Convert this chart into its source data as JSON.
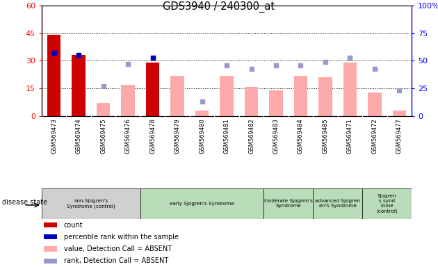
{
  "title": "GDS3940 / 240300_at",
  "samples": [
    "GSM569473",
    "GSM569474",
    "GSM569475",
    "GSM569476",
    "GSM569478",
    "GSM569479",
    "GSM569480",
    "GSM569481",
    "GSM569482",
    "GSM569483",
    "GSM569484",
    "GSM569485",
    "GSM569471",
    "GSM569472",
    "GSM569477"
  ],
  "red_bars": [
    44,
    33,
    0,
    0,
    29,
    0,
    0,
    0,
    0,
    0,
    0,
    0,
    0,
    0,
    0
  ],
  "blue_squares_pct": [
    57,
    55,
    0,
    0,
    53,
    0,
    0,
    0,
    0,
    0,
    0,
    0,
    0,
    0,
    0
  ],
  "pink_bars": [
    0,
    0,
    7,
    17,
    0,
    22,
    3,
    22,
    16,
    14,
    22,
    21,
    29,
    13,
    3
  ],
  "light_blue_pct": [
    0,
    0,
    27,
    47,
    52,
    0,
    13,
    46,
    43,
    46,
    46,
    49,
    53,
    43,
    23
  ],
  "ylim_left": [
    0,
    60
  ],
  "ylim_right": [
    0,
    100
  ],
  "yticks_left": [
    0,
    15,
    30,
    45,
    60
  ],
  "yticks_right": [
    0,
    25,
    50,
    75,
    100
  ],
  "disease_groups": [
    {
      "label": "non-Sjogren's\nSyndrome (control)",
      "start": 0,
      "end": 4,
      "color": "#d0d0d0"
    },
    {
      "label": "early Sjogren's Syndrome",
      "start": 4,
      "end": 9,
      "color": "#b8ddb8"
    },
    {
      "label": "moderate Sjogren's\nSyndrome",
      "start": 9,
      "end": 11,
      "color": "#b8ddb8"
    },
    {
      "label": "advanced Sjogren\nen's Syndrome",
      "start": 11,
      "end": 13,
      "color": "#b8ddb8"
    },
    {
      "label": "Sjogren\ns synd\nrome\n(control)",
      "start": 13,
      "end": 15,
      "color": "#b8ddb8"
    }
  ],
  "red_bar_color": "#cc0000",
  "pink_bar_color": "#ffaaaa",
  "blue_sq_color": "#0000bb",
  "light_blue_sq_color": "#9999cc",
  "xtick_bg": "#d0d0d0",
  "legend_items": [
    {
      "label": "count",
      "color": "#cc0000"
    },
    {
      "label": "percentile rank within the sample",
      "color": "#0000bb"
    },
    {
      "label": "value, Detection Call = ABSENT",
      "color": "#ffaaaa"
    },
    {
      "label": "rank, Detection Call = ABSENT",
      "color": "#9999cc"
    }
  ]
}
